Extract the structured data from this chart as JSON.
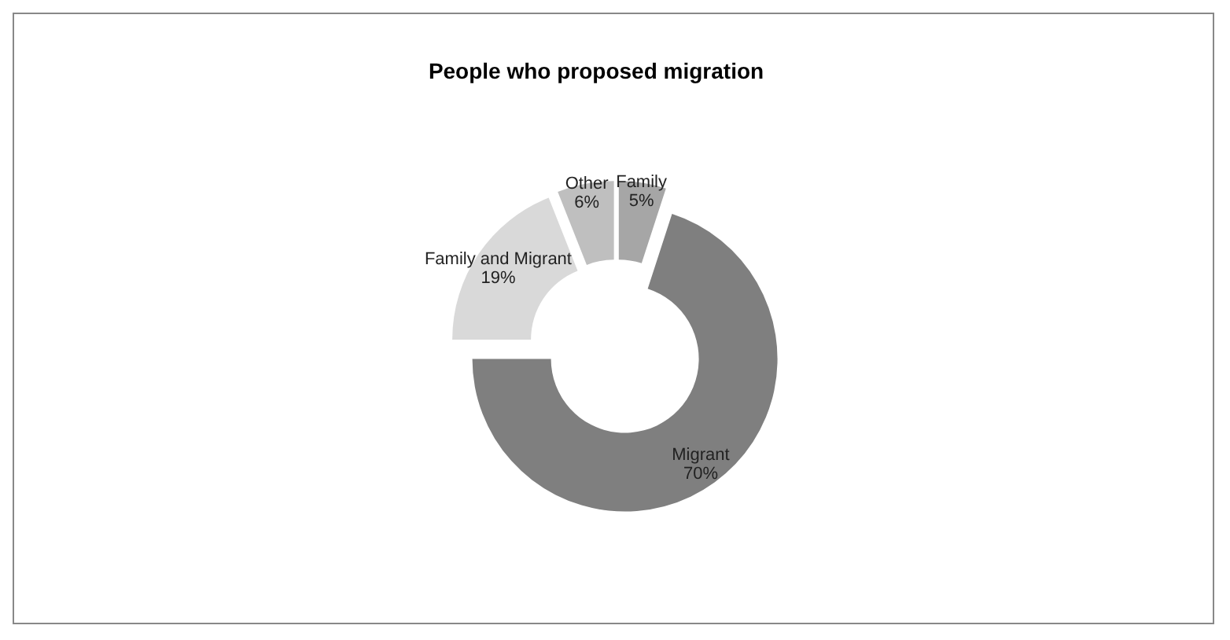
{
  "chart_data": {
    "type": "donut",
    "title": "People who proposed migration",
    "categories": [
      "Family",
      "Migrant",
      "Family and Migrant",
      "Other"
    ],
    "values": [
      5,
      70,
      19,
      6
    ],
    "value_labels": [
      "5%",
      "70%",
      "19%",
      "6%"
    ],
    "colors": [
      "#a6a6a6",
      "#7f7f7f",
      "#d9d9d9",
      "#bfbfbf"
    ]
  }
}
